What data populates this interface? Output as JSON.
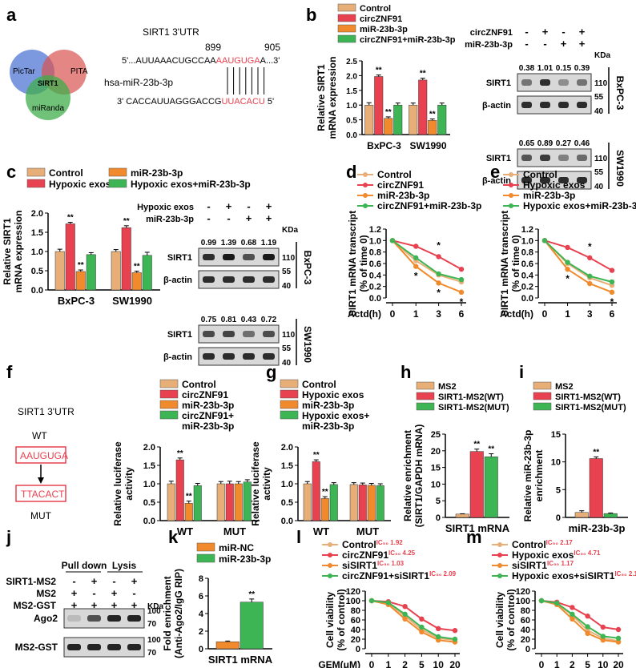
{
  "panel_labels": [
    "a",
    "b",
    "c",
    "d",
    "e",
    "f",
    "g",
    "h",
    "i",
    "j",
    "k",
    "l",
    "m"
  ],
  "colors": {
    "control": "#E7AE78",
    "red": "#E8414F",
    "orange": "#F08A2C",
    "green": "#3EB554",
    "blot": "#2f2f2f"
  },
  "panel_a": {
    "venn": [
      "PicTar",
      "PITA",
      "miRanda",
      "SIRT1"
    ],
    "utr_title": "SIRT1 3'UTR",
    "pos_start": "899",
    "pos_end": "905",
    "utr_prefix": "5'...AUUAAACUGCCAA",
    "utr_site": "AAUGUGA",
    "utr_suffix": "A...3'",
    "mirna_name": "hsa-miR-23b-3p",
    "mirna_prefix": "3' CACCAUUAGGGACCG",
    "mirna_site": "UUACACU",
    "mirna_suffix": " 5'"
  },
  "panel_f_diagram": {
    "title": "SIRT1 3'UTR",
    "wt": "WT",
    "wt_seq": "AAUGUGA",
    "mut_seq": "TTACACT",
    "mut": "MUT"
  },
  "blots": {
    "b": {
      "rows": [
        "circZNF91",
        "miR-23b-3p"
      ],
      "signs": [
        [
          "-",
          "+",
          "-",
          "+"
        ],
        [
          "-",
          "-",
          "+",
          "+"
        ]
      ],
      "kda": "KDa",
      "cells": [
        {
          "name": "BxPC-3",
          "values": [
            "0.38",
            "1.01",
            "0.15",
            "0.39"
          ]
        },
        {
          "name": "SW1990",
          "values": [
            "0.65",
            "0.89",
            "0.27",
            "0.46"
          ]
        }
      ],
      "proteins": [
        "SIRT1",
        "β-actin"
      ],
      "markers": [
        "110",
        "55",
        "40"
      ]
    },
    "c": {
      "rows": [
        "Hypoxic exos",
        "miR-23b-3p"
      ],
      "signs": [
        [
          "-",
          "+",
          "-",
          "+"
        ],
        [
          "-",
          "-",
          "+",
          "+"
        ]
      ],
      "kda": "KDa",
      "cells": [
        {
          "name": "BxPC-3",
          "values": [
            "0.99",
            "1.39",
            "0.68",
            "1.19"
          ]
        },
        {
          "name": "SW1990",
          "values": [
            "0.75",
            "0.81",
            "0.43",
            "0.72"
          ]
        }
      ],
      "proteins": [
        "SIRT1",
        "β-actin"
      ],
      "markers": [
        "110",
        "55",
        "40"
      ]
    },
    "j": {
      "rows": [
        "SIRT1-MS2",
        "MS2",
        "MS2-GST"
      ],
      "signs": [
        [
          "-",
          "+",
          "-",
          "+"
        ],
        [
          "+",
          "-",
          "+",
          "-"
        ],
        [
          "+",
          "+",
          "+",
          "+"
        ]
      ],
      "headers": [
        "Pull down",
        "Lysis"
      ],
      "proteins": [
        "Ago2",
        "MS2-GST"
      ],
      "markers": [
        "100",
        "70"
      ],
      "kda": "KDa"
    }
  },
  "chart_data": [
    {
      "id": "b",
      "type": "bar",
      "ylabel": "Relative SIRT1 mRNA expression",
      "ylim": [
        0,
        2.5
      ],
      "yticks": [
        "0.0",
        "0.5",
        "1.0",
        "1.5",
        "2.0",
        "2.5"
      ],
      "categories": [
        "BxPC-3",
        "SW1990"
      ],
      "series": [
        {
          "name": "Control",
          "values": [
            1.0,
            1.0
          ],
          "err": [
            0.08,
            0.07
          ]
        },
        {
          "name": "circZNF91",
          "values": [
            1.97,
            1.85
          ],
          "err": [
            0.05,
            0.06
          ]
        },
        {
          "name": "miR-23b-3p",
          "values": [
            0.55,
            0.48
          ],
          "err": [
            0.05,
            0.05
          ]
        },
        {
          "name": "circZNF91+miR-23b-3p",
          "values": [
            1.0,
            1.0
          ],
          "err": [
            0.07,
            0.07
          ]
        }
      ],
      "stars": [
        [
          "",
          "**",
          "**",
          ""
        ],
        [
          "",
          "**",
          "**",
          ""
        ]
      ]
    },
    {
      "id": "c",
      "type": "bar",
      "ylabel": "Relative SIRT1 mRNA expression",
      "ylim": [
        0,
        2.0
      ],
      "yticks": [
        "0.0",
        "0.5",
        "1.0",
        "1.5",
        "2.0"
      ],
      "legend": [
        "Control",
        "Hypoxic exos",
        "miR-23b-3p",
        "Hypoxic exos+miR-23b-3p"
      ],
      "categories": [
        "BxPC-3",
        "SW1990"
      ],
      "series": [
        {
          "name": "Control",
          "values": [
            1.0,
            1.0
          ],
          "err": [
            0.06,
            0.05
          ]
        },
        {
          "name": "Hypoxic exos",
          "values": [
            1.72,
            1.62
          ],
          "err": [
            0.04,
            0.05
          ]
        },
        {
          "name": "miR-23b-3p",
          "values": [
            0.48,
            0.45
          ],
          "err": [
            0.04,
            0.04
          ]
        },
        {
          "name": "Hypoxic exos+miR-23b-3p",
          "values": [
            0.92,
            0.9
          ],
          "err": [
            0.05,
            0.08
          ]
        }
      ],
      "stars": [
        [
          "",
          "**",
          "**",
          ""
        ],
        [
          "",
          "**",
          "**",
          ""
        ]
      ]
    },
    {
      "id": "d",
      "type": "line",
      "ylabel": "SIRT1 mRNA transcript (% of time 0)",
      "xlabel": "Actd(h)",
      "ylim": [
        0,
        1.2
      ],
      "yticks": [
        "0.0",
        "0.2",
        "0.4",
        "0.6",
        "0.8",
        "1.0",
        "1.2"
      ],
      "x": [
        "0",
        "1",
        "3",
        "6"
      ],
      "series": [
        {
          "name": "Control",
          "values": [
            1.0,
            0.65,
            0.4,
            0.28
          ]
        },
        {
          "name": "circZNF91",
          "values": [
            1.0,
            0.9,
            0.72,
            0.5
          ]
        },
        {
          "name": "miR-23b-3p",
          "values": [
            1.0,
            0.55,
            0.26,
            0.1
          ]
        },
        {
          "name": "circZNF91+miR-23b-3p",
          "values": [
            1.0,
            0.7,
            0.42,
            0.32
          ]
        }
      ],
      "stars": [
        {
          "i": 2,
          "s": 1,
          "t": "*"
        },
        {
          "i": 1,
          "s": 2,
          "t": "*"
        },
        {
          "i": 2,
          "s": 2,
          "t": "*"
        },
        {
          "i": 3,
          "s": 2,
          "t": "*"
        }
      ]
    },
    {
      "id": "e",
      "type": "line",
      "ylabel": "SIRT1 mRNA transcript (% of time 0)",
      "xlabel": "Actd(h)",
      "ylim": [
        0,
        1.2
      ],
      "yticks": [
        "0.0",
        "0.2",
        "0.4",
        "0.6",
        "0.8",
        "1.0",
        "1.2"
      ],
      "x": [
        "0",
        "1",
        "3",
        "6"
      ],
      "series": [
        {
          "name": "Control",
          "values": [
            1.0,
            0.6,
            0.35,
            0.22
          ]
        },
        {
          "name": "Hypoxic exos",
          "values": [
            1.0,
            0.88,
            0.7,
            0.48
          ]
        },
        {
          "name": "miR-23b-3p",
          "values": [
            1.0,
            0.5,
            0.25,
            0.1
          ]
        },
        {
          "name": "Hypoxic exos+miR-23b-3p",
          "values": [
            1.0,
            0.62,
            0.38,
            0.28
          ]
        }
      ],
      "stars": [
        {
          "i": 2,
          "s": 1,
          "t": "*"
        },
        {
          "i": 1,
          "s": 2,
          "t": "*"
        },
        {
          "i": 3,
          "s": 2,
          "t": "*"
        }
      ]
    },
    {
      "id": "f",
      "type": "bar",
      "ylabel": "Relative luciferase activity",
      "ylim": [
        0,
        2.0
      ],
      "yticks": [
        "0.0",
        "0.5",
        "1.0",
        "1.5",
        "2.0"
      ],
      "legend": [
        "Control",
        "circZNF91",
        "miR-23b-3p",
        "circZNF91+",
        "miR-23b-3p"
      ],
      "categories": [
        "WT",
        "MUT"
      ],
      "series": [
        {
          "name": "Control",
          "values": [
            1.0,
            1.0
          ],
          "err": [
            0.07,
            0.06
          ]
        },
        {
          "name": "circZNF91",
          "values": [
            1.65,
            1.0
          ],
          "err": [
            0.05,
            0.07
          ]
        },
        {
          "name": "miR-23b-3p",
          "values": [
            0.47,
            1.0
          ],
          "err": [
            0.06,
            0.06
          ]
        },
        {
          "name": "circZNF91+ miR-23b-3p",
          "values": [
            0.95,
            1.05
          ],
          "err": [
            0.06,
            0.06
          ]
        }
      ],
      "stars": [
        [
          "",
          "**",
          "**",
          ""
        ],
        [
          "",
          "",
          "",
          ""
        ]
      ]
    },
    {
      "id": "g",
      "type": "bar",
      "ylabel": "Relative luciferase activity",
      "ylim": [
        0,
        2.0
      ],
      "yticks": [
        "0.0",
        "0.5",
        "1.0",
        "1.5",
        "2.0"
      ],
      "legend": [
        "Control",
        "Hypoxic exos",
        "miR-23b-3p",
        "Hypoxic exos+",
        "miR-23b-3p"
      ],
      "categories": [
        "WT",
        "MUT"
      ],
      "series": [
        {
          "name": "Control",
          "values": [
            1.0,
            0.98
          ],
          "err": [
            0.06,
            0.05
          ]
        },
        {
          "name": "Hypoxic exos",
          "values": [
            1.6,
            0.97
          ],
          "err": [
            0.05,
            0.05
          ]
        },
        {
          "name": "miR-23b-3p",
          "values": [
            0.6,
            0.96
          ],
          "err": [
            0.05,
            0.05
          ]
        },
        {
          "name": "Hypoxic exos+ miR-23b-3p",
          "values": [
            0.98,
            0.95
          ],
          "err": [
            0.05,
            0.05
          ]
        }
      ],
      "stars": [
        [
          "",
          "**",
          "**",
          ""
        ],
        [
          "",
          "",
          "",
          ""
        ]
      ]
    },
    {
      "id": "h",
      "type": "bar",
      "ylabel": "Relative enrichment (SIRT1/GAPDH mRNA)",
      "ylim": [
        0,
        25
      ],
      "yticks": [
        "0",
        "5",
        "10",
        "15",
        "20",
        "25"
      ],
      "categories": [
        "SIRT1 mRNA"
      ],
      "series": [
        {
          "name": "MS2",
          "values": [
            1.0
          ],
          "err": [
            0.1
          ]
        },
        {
          "name": "SIRT1-MS2(WT)",
          "values": [
            19.8
          ],
          "err": [
            0.7
          ]
        },
        {
          "name": "SIRT1-MS2(MUT)",
          "values": [
            18.2
          ],
          "err": [
            0.9
          ]
        }
      ],
      "stars": [
        [
          "",
          "**",
          "**"
        ]
      ]
    },
    {
      "id": "i",
      "type": "bar",
      "ylabel": "Relative miR-23b-3p enrichment",
      "ylim": [
        0,
        15
      ],
      "yticks": [
        "0",
        "5",
        "10",
        "15"
      ],
      "categories": [
        "miR-23b-3p"
      ],
      "series": [
        {
          "name": "MS2",
          "values": [
            0.9
          ],
          "err": [
            0.3
          ]
        },
        {
          "name": "SIRT1-MS2(WT)",
          "values": [
            10.6
          ],
          "err": [
            0.3
          ]
        },
        {
          "name": "SIRT1-MS2(MUT)",
          "values": [
            0.7
          ],
          "err": [
            0.1
          ]
        }
      ],
      "stars": [
        [
          "",
          "**",
          ""
        ]
      ]
    },
    {
      "id": "k",
      "type": "bar",
      "ylabel": "Fold enrichment (Anti-Ago2/IgG RIP)",
      "ylim": [
        0,
        8
      ],
      "yticks": [
        "0",
        "2",
        "4",
        "6",
        "8"
      ],
      "categories": [
        "SIRT1 mRNA"
      ],
      "series": [
        {
          "name": "miR-NC",
          "values": [
            0.8
          ],
          "err": [
            0.08
          ]
        },
        {
          "name": "miR-23b-3p",
          "values": [
            5.3
          ],
          "err": [
            0.35
          ]
        }
      ],
      "stars": [
        [
          "",
          "**"
        ]
      ]
    },
    {
      "id": "l",
      "type": "line",
      "ylabel": "Cell viability (% of control)",
      "xlabel": "GEM(μM)",
      "ylim": [
        0,
        120
      ],
      "yticks": [
        "0",
        "20",
        "40",
        "60",
        "80",
        "100",
        "120"
      ],
      "x": [
        "0",
        "1",
        "2",
        "5",
        "10",
        "20"
      ],
      "series": [
        {
          "name": "Control",
          "ic50": "1.92",
          "values": [
            100,
            95,
            68,
            40,
            22,
            18
          ]
        },
        {
          "name": "circZNF91",
          "ic50": "4.25",
          "values": [
            100,
            98,
            88,
            62,
            42,
            38
          ]
        },
        {
          "name": "siSIRT1",
          "ic50": "1.03",
          "values": [
            100,
            92,
            62,
            35,
            18,
            14
          ]
        },
        {
          "name": "circZNF91+siSIRT1",
          "ic50": "2.09",
          "values": [
            100,
            96,
            72,
            45,
            25,
            20
          ]
        }
      ]
    },
    {
      "id": "m",
      "type": "line",
      "ylabel": "Cell viability (% of control)",
      "xlabel": "",
      "ylim": [
        0,
        120
      ],
      "yticks": [
        "0",
        "20",
        "40",
        "60",
        "80",
        "100",
        "120"
      ],
      "x": [
        "0",
        "1",
        "2",
        "5",
        "10",
        "20"
      ],
      "series": [
        {
          "name": "Control",
          "ic50": "2.17",
          "values": [
            100,
            94,
            70,
            38,
            22,
            16
          ]
        },
        {
          "name": "Hypoxic exos",
          "ic50": "4.71",
          "values": [
            100,
            97,
            86,
            68,
            45,
            40
          ]
        },
        {
          "name": "siSIRT1",
          "ic50": "1.17",
          "values": [
            100,
            92,
            62,
            32,
            18,
            14
          ]
        },
        {
          "name": "Hypoxic exos+siSIRT1",
          "ic50": "2.18",
          "values": [
            100,
            95,
            72,
            46,
            26,
            22
          ]
        }
      ]
    }
  ]
}
